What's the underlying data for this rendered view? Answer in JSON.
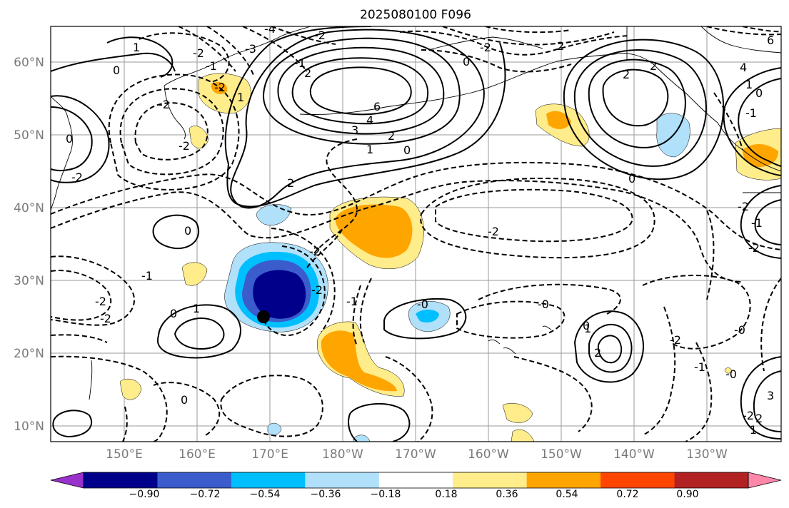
{
  "title": "2025080100 F096",
  "lat_labels": [
    "60°N",
    "50°N",
    "40°N",
    "30°N",
    "20°N",
    "10°N"
  ],
  "lon_labels": [
    "150°E",
    "160°E",
    "170°E",
    "180°W",
    "170°W",
    "160°W",
    "150°W",
    "140°W",
    "130°W"
  ],
  "colorbar": {
    "ticks": [
      "−0.90",
      "−0.72",
      "−0.54",
      "−0.36",
      "−0.18",
      "0.18",
      "0.36",
      "0.54",
      "0.72",
      "0.90"
    ],
    "colors": [
      "#9932cc",
      "#00008b",
      "#3a5ccc",
      "#00bfff",
      "#b0e0fa",
      "#ffffff",
      "#ffec8b",
      "#ffa500",
      "#ff4500",
      "#b22222",
      "#ff88aa"
    ]
  },
  "contour_labels": [
    "-4",
    "-2",
    "-2",
    "-3",
    "-1",
    "-1",
    "1",
    "0",
    "2",
    "-2",
    "-2",
    "1",
    "-2",
    "2",
    "0",
    "6",
    "4",
    "3",
    "2",
    "1",
    "0",
    "-2",
    "0",
    "-2",
    "-2",
    "-1",
    "-2",
    "-2",
    "0",
    "1",
    "-2",
    "-1",
    "0",
    "-0",
    "-2",
    "0",
    "1",
    "2",
    "-0",
    "0",
    "-2",
    "-1",
    "-0",
    "-2",
    "0",
    "2",
    "4",
    "6",
    "1",
    "0",
    "-1",
    "-1",
    "-2",
    "-0",
    "-2",
    "2",
    "3",
    "1",
    "2",
    "2"
  ],
  "marker": "storm-center-dot"
}
